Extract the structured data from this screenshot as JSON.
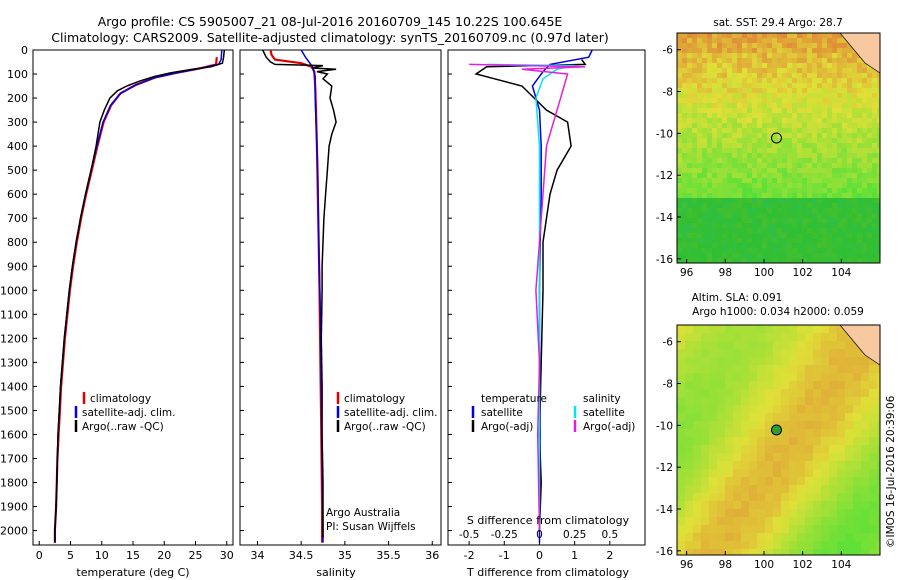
{
  "header": {
    "title_line1": "Argo profile: CS 5905007_21 08-Jul-2016 20160709_145 10.22S 100.645E",
    "title_line2": "Climatology: CARS2009. Satellite-adjusted climatology: synTS_20160709.nc (0.97d later)"
  },
  "colors": {
    "climatology": "#e00000",
    "satellite_adj_clim": "#0000e0",
    "argo": "#000000",
    "salinity_satellite": "#00e5ee",
    "salinity_argo": "#e020e0"
  },
  "depth_axis": {
    "ticks": [
      0,
      100,
      200,
      300,
      400,
      500,
      600,
      700,
      800,
      900,
      1000,
      1100,
      1200,
      1300,
      1400,
      1500,
      1600,
      1700,
      1800,
      1900,
      2000
    ],
    "ylim": [
      0,
      2060
    ]
  },
  "chart_data": [
    {
      "id": "temperature",
      "type": "line",
      "xlabel": "temperature (deg C)",
      "xlim": [
        -1,
        31
      ],
      "xticks": [
        0,
        5,
        10,
        15,
        20,
        25,
        30
      ],
      "legend": [
        "climatology",
        "satellite-adj. clim.",
        "Argo(..raw -QC)"
      ],
      "series": [
        {
          "name": "climatology",
          "color": "#e00000",
          "points": [
            [
              28.4,
              30
            ],
            [
              28.3,
              60
            ],
            [
              26,
              75
            ],
            [
              22,
              95
            ],
            [
              18.5,
              115
            ],
            [
              15.5,
              145
            ],
            [
              13,
              180
            ],
            [
              11.5,
              230
            ],
            [
              10.3,
              300
            ],
            [
              9.3,
              400
            ],
            [
              8.4,
              500
            ],
            [
              7.5,
              600
            ],
            [
              6.7,
              700
            ],
            [
              6,
              800
            ],
            [
              5.4,
              900
            ],
            [
              4.9,
              1000
            ],
            [
              4.5,
              1100
            ],
            [
              4.1,
              1200
            ],
            [
              3.8,
              1300
            ],
            [
              3.5,
              1400
            ],
            [
              3.3,
              1500
            ],
            [
              3.1,
              1600
            ],
            [
              2.9,
              1700
            ],
            [
              2.8,
              1800
            ],
            [
              2.7,
              1900
            ],
            [
              2.5,
              2000
            ],
            [
              2.5,
              2050
            ]
          ]
        },
        {
          "name": "satellite-adj. clim.",
          "color": "#0000e0",
          "points": [
            [
              29.2,
              0
            ],
            [
              29.1,
              40
            ],
            [
              28.7,
              60
            ],
            [
              26,
              75
            ],
            [
              22,
              95
            ],
            [
              18.5,
              115
            ],
            [
              15.5,
              145
            ],
            [
              13,
              180
            ],
            [
              11.4,
              230
            ],
            [
              10.2,
              300
            ],
            [
              9.2,
              400
            ],
            [
              8.3,
              500
            ],
            [
              7.4,
              600
            ],
            [
              6.6,
              700
            ],
            [
              5.9,
              800
            ],
            [
              5.3,
              900
            ],
            [
              4.8,
              1000
            ],
            [
              4.4,
              1100
            ],
            [
              4,
              1200
            ],
            [
              3.7,
              1300
            ],
            [
              3.4,
              1400
            ],
            [
              3.2,
              1500
            ],
            [
              3,
              1600
            ],
            [
              2.9,
              1700
            ],
            [
              2.8,
              1800
            ],
            [
              2.7,
              1900
            ],
            [
              2.5,
              2000
            ],
            [
              2.5,
              2050
            ]
          ]
        },
        {
          "name": "Argo(..raw -QC)",
          "color": "#000000",
          "points": [
            [
              29.6,
              0
            ],
            [
              29.5,
              30
            ],
            [
              29.3,
              55
            ],
            [
              27.5,
              70
            ],
            [
              24.5,
              80
            ],
            [
              21,
              95
            ],
            [
              18.5,
              110
            ],
            [
              16,
              130
            ],
            [
              14,
              150
            ],
            [
              12.5,
              170
            ],
            [
              11.3,
              200
            ],
            [
              10.4,
              250
            ],
            [
              9.7,
              300
            ],
            [
              9.1,
              400
            ],
            [
              8.3,
              500
            ],
            [
              7.4,
              600
            ],
            [
              6.6,
              700
            ],
            [
              5.9,
              800
            ],
            [
              5.3,
              900
            ],
            [
              4.8,
              1000
            ],
            [
              4.4,
              1100
            ],
            [
              4,
              1200
            ],
            [
              3.7,
              1300
            ],
            [
              3.4,
              1400
            ],
            [
              3.2,
              1500
            ],
            [
              3,
              1600
            ],
            [
              2.9,
              1700
            ],
            [
              2.8,
              1800
            ],
            [
              2.7,
              1900
            ],
            [
              2.5,
              2000
            ],
            [
              2.5,
              2050
            ]
          ]
        }
      ]
    },
    {
      "id": "salinity",
      "type": "line",
      "xlabel": "salinity",
      "xlim": [
        33.8,
        36.1
      ],
      "xticks": [
        34,
        34.5,
        35,
        35.5,
        36
      ],
      "legend": [
        "climatology",
        "satellite-adj. clim.",
        "Argo(..raw -QC)"
      ],
      "series": [
        {
          "name": "climatology",
          "color": "#e00000",
          "points": [
            [
              34.15,
              0
            ],
            [
              34.16,
              20
            ],
            [
              34.2,
              40
            ],
            [
              34.5,
              55
            ],
            [
              34.62,
              70
            ],
            [
              34.65,
              90
            ],
            [
              34.66,
              150
            ],
            [
              34.67,
              250
            ],
            [
              34.68,
              400
            ],
            [
              34.69,
              600
            ],
            [
              34.7,
              800
            ],
            [
              34.71,
              1000
            ],
            [
              34.72,
              1300
            ],
            [
              34.73,
              1600
            ],
            [
              34.74,
              1900
            ],
            [
              34.74,
              2050
            ]
          ]
        },
        {
          "name": "satellite-adj. clim.",
          "color": "#0000e0",
          "points": [
            [
              34.5,
              0
            ],
            [
              34.55,
              30
            ],
            [
              34.6,
              55
            ],
            [
              34.63,
              70
            ],
            [
              34.66,
              110
            ],
            [
              34.66,
              200
            ],
            [
              34.67,
              300
            ],
            [
              34.69,
              500
            ],
            [
              34.7,
              800
            ],
            [
              34.72,
              1100
            ],
            [
              34.73,
              1400
            ],
            [
              34.74,
              1700
            ],
            [
              34.75,
              2000
            ],
            [
              34.75,
              2050
            ]
          ]
        },
        {
          "name": "Argo(..raw -QC)",
          "color": "#000000",
          "points": [
            [
              34.06,
              0
            ],
            [
              34.1,
              30
            ],
            [
              34.15,
              50
            ],
            [
              34.2,
              60
            ],
            [
              34.75,
              65
            ],
            [
              34.62,
              75
            ],
            [
              34.9,
              80
            ],
            [
              34.68,
              90
            ],
            [
              34.8,
              100
            ],
            [
              34.75,
              120
            ],
            [
              34.85,
              150
            ],
            [
              34.83,
              200
            ],
            [
              34.87,
              250
            ],
            [
              34.9,
              300
            ],
            [
              34.85,
              350
            ],
            [
              34.82,
              400
            ],
            [
              34.8,
              500
            ],
            [
              34.78,
              600
            ],
            [
              34.76,
              700
            ],
            [
              34.75,
              800
            ],
            [
              34.74,
              900
            ],
            [
              34.74,
              1000
            ],
            [
              34.73,
              1200
            ],
            [
              34.74,
              1400
            ],
            [
              34.74,
              1600
            ],
            [
              34.75,
              1800
            ],
            [
              34.75,
              2000
            ],
            [
              34.75,
              2030
            ]
          ]
        }
      ]
    },
    {
      "id": "difference",
      "type": "line",
      "xlabel": "T difference from climatology",
      "xlabel_top": "S difference from climatology",
      "xlim": [
        -2.6,
        3.0
      ],
      "xticks": [
        -2,
        -1,
        0,
        1,
        2
      ],
      "xticks_s": [
        "-0.5",
        "-0.25",
        "0",
        "0.25",
        "0.5"
      ],
      "legend_left_title": "temperature",
      "legend_right_title": "salinity",
      "legend": [
        "satellite",
        "Argo(-adj)",
        "satellite",
        "Argo(-adj)"
      ],
      "series": [
        {
          "name": "satellite",
          "group": "temperature",
          "color": "#0000e0",
          "points": [
            [
              1.5,
              0
            ],
            [
              1.4,
              30
            ],
            [
              0.3,
              60
            ],
            [
              0.1,
              90
            ],
            [
              -0.2,
              150
            ],
            [
              0,
              250
            ],
            [
              0.05,
              400
            ],
            [
              0.05,
              600
            ],
            [
              0.02,
              800
            ],
            [
              0,
              1000
            ],
            [
              0,
              1300
            ],
            [
              0.02,
              1600
            ],
            [
              0,
              1900
            ],
            [
              0,
              2050
            ]
          ]
        },
        {
          "name": "Argo(-adj)",
          "group": "temperature",
          "color": "#000000",
          "points": [
            [
              1.2,
              40
            ],
            [
              1.3,
              60
            ],
            [
              -1.5,
              70
            ],
            [
              -1.8,
              100
            ],
            [
              -0.5,
              150
            ],
            [
              0.2,
              250
            ],
            [
              0.8,
              300
            ],
            [
              0.9,
              400
            ],
            [
              0.5,
              500
            ],
            [
              0.3,
              600
            ],
            [
              0.1,
              800
            ],
            [
              0.1,
              1000
            ],
            [
              0.05,
              1300
            ],
            [
              0,
              1600
            ],
            [
              0.05,
              1800
            ],
            [
              0,
              2000
            ]
          ]
        },
        {
          "name": "satellite",
          "group": "salinity",
          "color": "#00e5ee",
          "points": [
            [
              -1.5,
              60
            ],
            [
              1.0,
              65
            ],
            [
              0.5,
              80
            ],
            [
              0.1,
              120
            ],
            [
              -0.1,
              200
            ],
            [
              0,
              400
            ],
            [
              0,
              700
            ],
            [
              0,
              1000
            ],
            [
              0,
              1300
            ],
            [
              0,
              1600
            ],
            [
              0,
              2000
            ]
          ]
        },
        {
          "name": "Argo(-adj)",
          "group": "salinity",
          "color": "#e020e0",
          "points": [
            [
              -2,
              60
            ],
            [
              1.3,
              70
            ],
            [
              -0.5,
              80
            ],
            [
              0.8,
              100
            ],
            [
              0.6,
              200
            ],
            [
              0.4,
              300
            ],
            [
              0.2,
              400
            ],
            [
              0.1,
              600
            ],
            [
              0,
              800
            ],
            [
              -0.1,
              1000
            ],
            [
              0,
              1300
            ],
            [
              -0.05,
              1600
            ],
            [
              0,
              2000
            ]
          ]
        }
      ]
    },
    {
      "id": "sst_map",
      "type": "heatmap",
      "title": "sat. SST: 29.4 Argo: 28.7",
      "xlim": [
        95.5,
        106
      ],
      "ylim": [
        -16.2,
        -5.2
      ],
      "xticks": [
        96,
        98,
        100,
        102,
        104
      ],
      "yticks": [
        -6,
        -8,
        -10,
        -12,
        -14,
        -16
      ],
      "argo_position": [
        100.645,
        -10.22
      ]
    },
    {
      "id": "sla_map",
      "type": "heatmap",
      "title": "Altim. SLA: 0.091",
      "subtitle": "Argo h1000: 0.034 h2000: 0.059",
      "xlim": [
        95.5,
        106
      ],
      "ylim": [
        -16.2,
        -5.2
      ],
      "xticks": [
        96,
        98,
        100,
        102,
        104
      ],
      "yticks": [
        -6,
        -8,
        -10,
        -12,
        -14,
        -16
      ],
      "argo_position": [
        100.645,
        -10.22
      ]
    }
  ],
  "footer": {
    "credit_line1": "Argo Australia",
    "credit_line2": "PI: Susan Wijffels",
    "side_stamp": "©IMOS 16-Jul-2016 20:39:06"
  }
}
